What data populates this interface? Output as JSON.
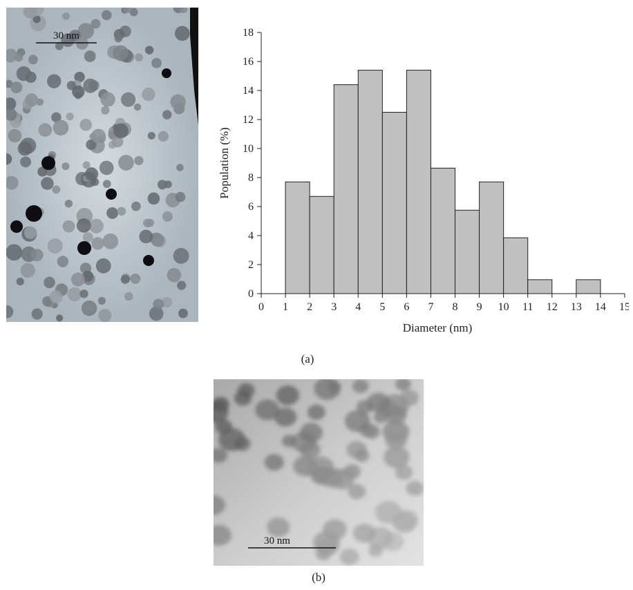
{
  "panel_a": {
    "caption": "(a)",
    "scale_bar_label": "30 nm"
  },
  "panel_b": {
    "caption": "(b)",
    "scale_bar_label": "30 nm"
  },
  "colors": {
    "bar_fill": "#c0c0c0",
    "bar_stroke": "#231f20",
    "tem_a_background": "#b5bfc7",
    "tem_b_background": "#cfcfcf"
  },
  "chart_data": {
    "type": "bar",
    "xlabel": "Diameter (nm)",
    "ylabel": "Population (%)",
    "xlim": [
      0,
      15
    ],
    "ylim": [
      0,
      18
    ],
    "xticks": [
      0,
      1,
      2,
      3,
      4,
      5,
      6,
      7,
      8,
      9,
      10,
      11,
      12,
      13,
      14,
      15
    ],
    "yticks": [
      0,
      2,
      4,
      6,
      8,
      10,
      12,
      14,
      16,
      18
    ],
    "grid": false,
    "bins": [
      {
        "x0": 1,
        "x1": 2,
        "value": 7.7
      },
      {
        "x0": 2,
        "x1": 3,
        "value": 6.7
      },
      {
        "x0": 3,
        "x1": 4,
        "value": 14.4
      },
      {
        "x0": 4,
        "x1": 5,
        "value": 15.4
      },
      {
        "x0": 5,
        "x1": 6,
        "value": 12.5
      },
      {
        "x0": 6,
        "x1": 7,
        "value": 15.4
      },
      {
        "x0": 7,
        "x1": 8,
        "value": 8.65
      },
      {
        "x0": 8,
        "x1": 9,
        "value": 5.75
      },
      {
        "x0": 9,
        "x1": 10,
        "value": 7.7
      },
      {
        "x0": 10,
        "x1": 11,
        "value": 3.85
      },
      {
        "x0": 11,
        "x1": 12,
        "value": 0.96
      },
      {
        "x0": 13,
        "x1": 14,
        "value": 0.96
      }
    ]
  }
}
